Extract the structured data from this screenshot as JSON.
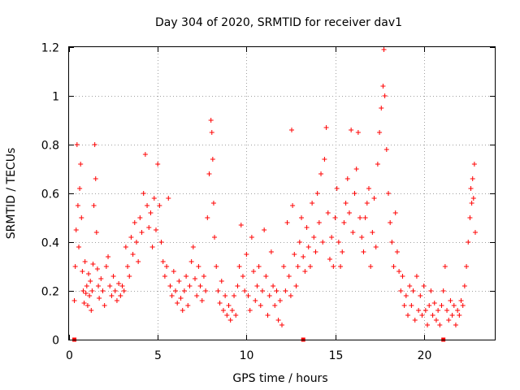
{
  "chart_data": {
    "type": "scatter",
    "title": "Day 304 of 2020, SRMTID for receiver dav1",
    "xlabel": "GPS time / hours",
    "ylabel": "SRMTID / TECUs",
    "xlim": [
      0,
      24
    ],
    "ylim": [
      0,
      1.2
    ],
    "xticks": [
      0,
      5,
      10,
      15,
      20
    ],
    "xtick_labels": [
      "0",
      "5",
      "10",
      "15",
      "20"
    ],
    "yticks": [
      0,
      0.2,
      0.4,
      0.6,
      0.8,
      1,
      1.2
    ],
    "ytick_labels": [
      "0",
      "0.2",
      "0.4",
      "0.6",
      "0.8",
      "1",
      "1.2"
    ],
    "grid": true,
    "marker": "+",
    "series": [
      {
        "name": "SRMTID",
        "color": "#ff0000",
        "points": [
          [
            0.3,
            0.16
          ],
          [
            0.35,
            0.3
          ],
          [
            0.4,
            0.45
          ],
          [
            0.45,
            0.8
          ],
          [
            0.5,
            0.55
          ],
          [
            0.55,
            0.38
          ],
          [
            0.6,
            0.62
          ],
          [
            0.65,
            0.72
          ],
          [
            0.7,
            0.5
          ],
          [
            0.75,
            0.28
          ],
          [
            0.8,
            0.2
          ],
          [
            0.85,
            0.15
          ],
          [
            0.9,
            0.32
          ],
          [
            0.95,
            0.19
          ],
          [
            1.0,
            0.22
          ],
          [
            1.05,
            0.14
          ],
          [
            1.1,
            0.27
          ],
          [
            1.15,
            0.18
          ],
          [
            1.2,
            0.24
          ],
          [
            1.25,
            0.12
          ],
          [
            1.3,
            0.2
          ],
          [
            1.35,
            0.31
          ],
          [
            1.4,
            0.55
          ],
          [
            1.45,
            0.8
          ],
          [
            1.5,
            0.66
          ],
          [
            1.55,
            0.44
          ],
          [
            1.6,
            0.29
          ],
          [
            1.65,
            0.22
          ],
          [
            1.7,
            0.17
          ],
          [
            1.8,
            0.25
          ],
          [
            1.9,
            0.2
          ],
          [
            2.0,
            0.14
          ],
          [
            2.1,
            0.3
          ],
          [
            2.2,
            0.34
          ],
          [
            2.3,
            0.22
          ],
          [
            2.4,
            0.18
          ],
          [
            2.5,
            0.26
          ],
          [
            2.6,
            0.2
          ],
          [
            2.7,
            0.16
          ],
          [
            2.8,
            0.23
          ],
          [
            2.9,
            0.18
          ],
          [
            3.0,
            0.22
          ],
          [
            3.1,
            0.2
          ],
          [
            3.2,
            0.38
          ],
          [
            3.3,
            0.3
          ],
          [
            3.4,
            0.26
          ],
          [
            3.5,
            0.42
          ],
          [
            3.6,
            0.35
          ],
          [
            3.7,
            0.48
          ],
          [
            3.8,
            0.4
          ],
          [
            3.9,
            0.32
          ],
          [
            4.0,
            0.5
          ],
          [
            4.1,
            0.44
          ],
          [
            4.2,
            0.6
          ],
          [
            4.3,
            0.76
          ],
          [
            4.4,
            0.55
          ],
          [
            4.5,
            0.46
          ],
          [
            4.6,
            0.52
          ],
          [
            4.7,
            0.38
          ],
          [
            4.8,
            0.58
          ],
          [
            4.9,
            0.45
          ],
          [
            5.0,
            0.72
          ],
          [
            5.1,
            0.55
          ],
          [
            5.2,
            0.4
          ],
          [
            5.3,
            0.32
          ],
          [
            5.4,
            0.26
          ],
          [
            5.5,
            0.3
          ],
          [
            5.6,
            0.58
          ],
          [
            5.7,
            0.22
          ],
          [
            5.8,
            0.18
          ],
          [
            5.9,
            0.28
          ],
          [
            6.0,
            0.2
          ],
          [
            6.1,
            0.15
          ],
          [
            6.2,
            0.24
          ],
          [
            6.3,
            0.17
          ],
          [
            6.4,
            0.12
          ],
          [
            6.5,
            0.2
          ],
          [
            6.6,
            0.26
          ],
          [
            6.7,
            0.14
          ],
          [
            6.8,
            0.22
          ],
          [
            6.9,
            0.32
          ],
          [
            7.0,
            0.38
          ],
          [
            7.1,
            0.25
          ],
          [
            7.2,
            0.18
          ],
          [
            7.3,
            0.3
          ],
          [
            7.4,
            0.22
          ],
          [
            7.5,
            0.16
          ],
          [
            7.6,
            0.26
          ],
          [
            7.7,
            0.2
          ],
          [
            7.8,
            0.5
          ],
          [
            7.9,
            0.68
          ],
          [
            8.0,
            0.9
          ],
          [
            8.05,
            0.85
          ],
          [
            8.1,
            0.74
          ],
          [
            8.15,
            0.56
          ],
          [
            8.2,
            0.42
          ],
          [
            8.3,
            0.3
          ],
          [
            8.4,
            0.2
          ],
          [
            8.5,
            0.15
          ],
          [
            8.6,
            0.24
          ],
          [
            8.7,
            0.12
          ],
          [
            8.8,
            0.18
          ],
          [
            8.9,
            0.1
          ],
          [
            9.0,
            0.14
          ],
          [
            9.1,
            0.08
          ],
          [
            9.2,
            0.12
          ],
          [
            9.3,
            0.18
          ],
          [
            9.4,
            0.1
          ],
          [
            9.5,
            0.22
          ],
          [
            9.6,
            0.3
          ],
          [
            9.7,
            0.47
          ],
          [
            9.8,
            0.26
          ],
          [
            9.9,
            0.2
          ],
          [
            10.0,
            0.35
          ],
          [
            10.1,
            0.18
          ],
          [
            10.2,
            0.12
          ],
          [
            10.3,
            0.42
          ],
          [
            10.4,
            0.28
          ],
          [
            10.5,
            0.16
          ],
          [
            10.6,
            0.22
          ],
          [
            10.7,
            0.3
          ],
          [
            10.8,
            0.14
          ],
          [
            10.9,
            0.2
          ],
          [
            11.0,
            0.45
          ],
          [
            11.1,
            0.26
          ],
          [
            11.2,
            0.1
          ],
          [
            11.3,
            0.18
          ],
          [
            11.4,
            0.36
          ],
          [
            11.5,
            0.22
          ],
          [
            11.6,
            0.14
          ],
          [
            11.7,
            0.2
          ],
          [
            11.8,
            0.08
          ],
          [
            11.9,
            0.16
          ],
          [
            12.0,
            0.06
          ],
          [
            12.1,
            0.3
          ],
          [
            12.2,
            0.2
          ],
          [
            12.3,
            0.48
          ],
          [
            12.4,
            0.26
          ],
          [
            12.5,
            0.18
          ],
          [
            12.55,
            0.86
          ],
          [
            12.6,
            0.55
          ],
          [
            12.7,
            0.35
          ],
          [
            12.8,
            0.22
          ],
          [
            12.9,
            0.3
          ],
          [
            13.0,
            0.4
          ],
          [
            13.1,
            0.5
          ],
          [
            13.2,
            0.34
          ],
          [
            13.3,
            0.28
          ],
          [
            13.4,
            0.46
          ],
          [
            13.5,
            0.38
          ],
          [
            13.6,
            0.3
          ],
          [
            13.7,
            0.56
          ],
          [
            13.8,
            0.42
          ],
          [
            13.9,
            0.36
          ],
          [
            14.0,
            0.6
          ],
          [
            14.1,
            0.48
          ],
          [
            14.2,
            0.68
          ],
          [
            14.3,
            0.4
          ],
          [
            14.4,
            0.74
          ],
          [
            14.5,
            0.87
          ],
          [
            14.6,
            0.52
          ],
          [
            14.7,
            0.33
          ],
          [
            14.8,
            0.42
          ],
          [
            14.9,
            0.3
          ],
          [
            15.0,
            0.5
          ],
          [
            15.1,
            0.62
          ],
          [
            15.2,
            0.4
          ],
          [
            15.3,
            0.3
          ],
          [
            15.4,
            0.36
          ],
          [
            15.5,
            0.48
          ],
          [
            15.6,
            0.56
          ],
          [
            15.7,
            0.66
          ],
          [
            15.8,
            0.52
          ],
          [
            15.9,
            0.86
          ],
          [
            16.0,
            0.44
          ],
          [
            16.1,
            0.6
          ],
          [
            16.2,
            0.7
          ],
          [
            16.3,
            0.85
          ],
          [
            16.4,
            0.5
          ],
          [
            16.5,
            0.42
          ],
          [
            16.6,
            0.36
          ],
          [
            16.7,
            0.5
          ],
          [
            16.8,
            0.56
          ],
          [
            16.9,
            0.62
          ],
          [
            17.0,
            0.3
          ],
          [
            17.1,
            0.44
          ],
          [
            17.2,
            0.58
          ],
          [
            17.3,
            0.38
          ],
          [
            17.4,
            0.72
          ],
          [
            17.5,
            0.85
          ],
          [
            17.6,
            0.95
          ],
          [
            17.7,
            1.04
          ],
          [
            17.75,
            1.19
          ],
          [
            17.8,
            1.0
          ],
          [
            17.9,
            0.78
          ],
          [
            18.0,
            0.6
          ],
          [
            18.1,
            0.48
          ],
          [
            18.2,
            0.4
          ],
          [
            18.3,
            0.3
          ],
          [
            18.4,
            0.52
          ],
          [
            18.5,
            0.36
          ],
          [
            18.6,
            0.28
          ],
          [
            18.7,
            0.2
          ],
          [
            18.8,
            0.26
          ],
          [
            18.9,
            0.14
          ],
          [
            19.0,
            0.18
          ],
          [
            19.1,
            0.1
          ],
          [
            19.2,
            0.22
          ],
          [
            19.3,
            0.14
          ],
          [
            19.4,
            0.2
          ],
          [
            19.5,
            0.08
          ],
          [
            19.6,
            0.26
          ],
          [
            19.7,
            0.12
          ],
          [
            19.8,
            0.18
          ],
          [
            19.9,
            0.1
          ],
          [
            20.0,
            0.22
          ],
          [
            20.1,
            0.12
          ],
          [
            20.2,
            0.06
          ],
          [
            20.3,
            0.14
          ],
          [
            20.4,
            0.2
          ],
          [
            20.5,
            0.1
          ],
          [
            20.6,
            0.15
          ],
          [
            20.7,
            0.08
          ],
          [
            20.8,
            0.12
          ],
          [
            20.9,
            0.06
          ],
          [
            21.0,
            0.14
          ],
          [
            21.1,
            0.2
          ],
          [
            21.2,
            0.3
          ],
          [
            21.3,
            0.12
          ],
          [
            21.4,
            0.08
          ],
          [
            21.5,
            0.16
          ],
          [
            21.6,
            0.1
          ],
          [
            21.7,
            0.14
          ],
          [
            21.8,
            0.06
          ],
          [
            21.9,
            0.12
          ],
          [
            22.0,
            0.1
          ],
          [
            22.1,
            0.16
          ],
          [
            22.2,
            0.14
          ],
          [
            22.3,
            0.22
          ],
          [
            22.4,
            0.3
          ],
          [
            22.5,
            0.4
          ],
          [
            22.6,
            0.5
          ],
          [
            22.65,
            0.62
          ],
          [
            22.7,
            0.56
          ],
          [
            22.75,
            0.66
          ],
          [
            22.8,
            0.58
          ],
          [
            22.85,
            0.72
          ],
          [
            22.9,
            0.44
          ]
        ]
      },
      {
        "name": "markers-at-zero",
        "color": "#ff0000",
        "marker": "square",
        "points": [
          [
            0.3,
            0
          ],
          [
            13.2,
            0
          ],
          [
            21.1,
            0
          ]
        ]
      }
    ]
  }
}
